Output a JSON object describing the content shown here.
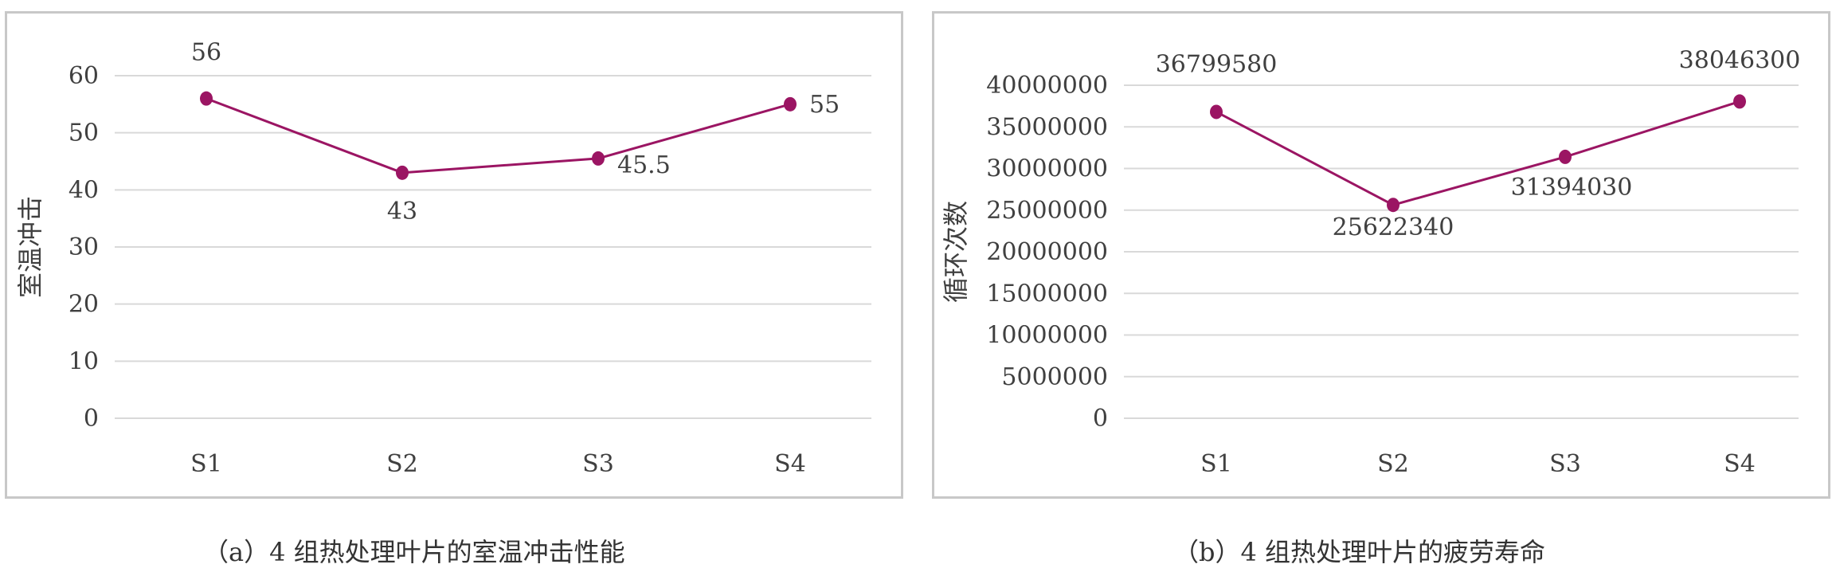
{
  "chart_data": [
    {
      "type": "line",
      "title": "",
      "ylabel": "室温冲击",
      "xlabel": "",
      "categories": [
        "S1",
        "S2",
        "S3",
        "S4"
      ],
      "series": [
        {
          "values": [
            56,
            43,
            45.5,
            55
          ]
        }
      ],
      "data_labels": [
        "56",
        "43",
        "45.5",
        "55"
      ],
      "yticks": [
        "0",
        "10",
        "20",
        "30",
        "40",
        "50",
        "60"
      ],
      "ylim": [
        0,
        60
      ],
      "grid": true,
      "legend": "none",
      "color": "#9b1563"
    },
    {
      "type": "line",
      "title": "",
      "ylabel": "循环次数",
      "xlabel": "",
      "categories": [
        "S1",
        "S2",
        "S3",
        "S4"
      ],
      "series": [
        {
          "values": [
            36799580,
            25622340,
            31394030,
            38046300
          ]
        }
      ],
      "data_labels": [
        "36799580",
        "25622340",
        "31394030",
        "38046300"
      ],
      "yticks": [
        "0",
        "5000000",
        "10000000",
        "15000000",
        "20000000",
        "25000000",
        "30000000",
        "35000000",
        "40000000"
      ],
      "ylim": [
        0,
        40000000
      ],
      "grid": true,
      "legend": "none",
      "color": "#9b1563"
    }
  ],
  "captions": {
    "a": "（a）4 组热处理叶片的室温冲击性能",
    "b": "（b）4 组热处理叶片的疲劳寿命"
  }
}
